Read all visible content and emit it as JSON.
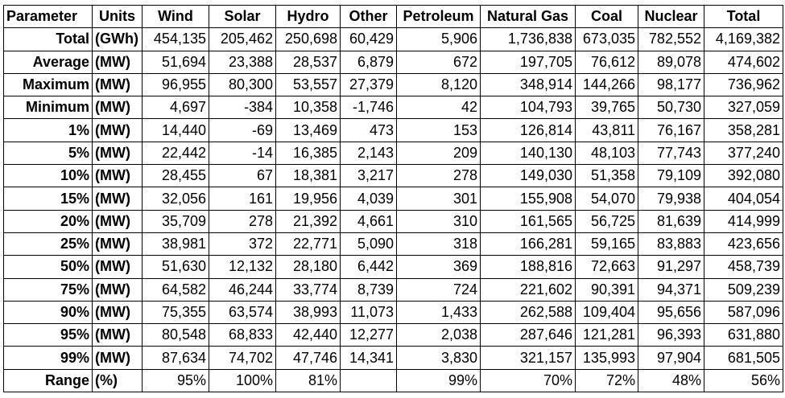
{
  "table": {
    "header": [
      "Parameter",
      "Units",
      "Wind",
      "Solar",
      "Hydro",
      "Other",
      "Petroleum",
      "Natural Gas",
      "Coal",
      "Nuclear",
      "Total"
    ],
    "rows": [
      [
        "Total",
        "(GWh)",
        "454,135",
        "205,462",
        "250,698",
        "60,429",
        "5,906",
        "1,736,838",
        "673,035",
        "782,552",
        "4,169,382"
      ],
      [
        "Average",
        "(MW)",
        "51,694",
        "23,388",
        "28,537",
        "6,879",
        "672",
        "197,705",
        "76,612",
        "89,078",
        "474,602"
      ],
      [
        "Maximum",
        "(MW)",
        "96,955",
        "80,300",
        "53,557",
        "27,379",
        "8,120",
        "348,914",
        "144,266",
        "98,177",
        "736,962"
      ],
      [
        "Minimum",
        "(MW)",
        "4,697",
        "-384",
        "10,358",
        "-1,746",
        "42",
        "104,793",
        "39,765",
        "50,730",
        "327,059"
      ],
      [
        "1%",
        "(MW)",
        "14,440",
        "-69",
        "13,469",
        "473",
        "153",
        "126,814",
        "43,811",
        "76,167",
        "358,281"
      ],
      [
        "5%",
        "(MW)",
        "22,442",
        "-14",
        "16,385",
        "2,143",
        "209",
        "140,130",
        "48,103",
        "77,743",
        "377,240"
      ],
      [
        "10%",
        "(MW)",
        "28,455",
        "67",
        "18,381",
        "3,217",
        "278",
        "149,030",
        "51,358",
        "79,109",
        "392,080"
      ],
      [
        "15%",
        "(MW)",
        "32,056",
        "161",
        "19,956",
        "4,039",
        "301",
        "155,908",
        "54,070",
        "79,938",
        "404,054"
      ],
      [
        "20%",
        "(MW)",
        "35,709",
        "278",
        "21,392",
        "4,661",
        "310",
        "161,565",
        "56,725",
        "81,639",
        "414,999"
      ],
      [
        "25%",
        "(MW)",
        "38,981",
        "372",
        "22,771",
        "5,090",
        "318",
        "166,281",
        "59,165",
        "83,883",
        "423,656"
      ],
      [
        "50%",
        "(MW)",
        "51,630",
        "12,132",
        "28,180",
        "6,442",
        "369",
        "188,816",
        "72,663",
        "91,297",
        "458,739"
      ],
      [
        "75%",
        "(MW)",
        "64,582",
        "46,244",
        "33,774",
        "8,739",
        "724",
        "221,602",
        "90,391",
        "94,371",
        "509,239"
      ],
      [
        "90%",
        "(MW)",
        "75,355",
        "63,574",
        "38,993",
        "11,073",
        "1,433",
        "262,588",
        "109,404",
        "95,656",
        "587,096"
      ],
      [
        "95%",
        "(MW)",
        "80,548",
        "68,833",
        "42,440",
        "12,277",
        "2,038",
        "287,646",
        "121,281",
        "96,393",
        "631,880"
      ],
      [
        "99%",
        "(MW)",
        "87,634",
        "74,702",
        "47,746",
        "14,341",
        "3,830",
        "321,157",
        "135,993",
        "97,904",
        "681,505"
      ],
      [
        "Range",
        "(%)",
        "95%",
        "100%",
        "81%",
        null,
        "99%",
        "70%",
        "72%",
        "48%",
        "56%"
      ]
    ]
  }
}
